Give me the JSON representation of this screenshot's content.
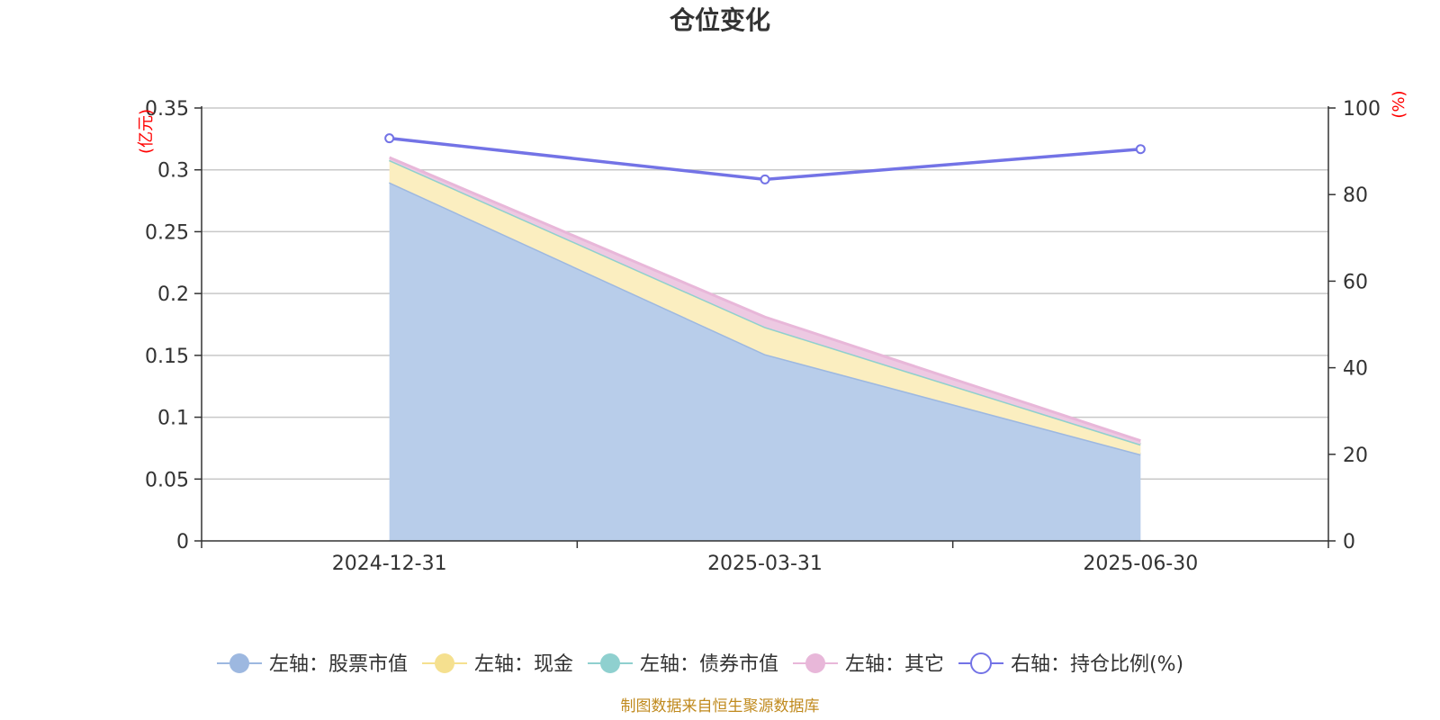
{
  "chart_data": {
    "type": "area",
    "title": "仓位变化",
    "categories": [
      "2024-12-31",
      "2025-03-31",
      "2025-06-30"
    ],
    "left_axis": {
      "unit": "(亿元)",
      "ylim": [
        0,
        0.35
      ],
      "ticks": [
        "0",
        "0.05",
        "0.1",
        "0.15",
        "0.2",
        "0.25",
        "0.3",
        "0.35"
      ]
    },
    "right_axis": {
      "unit": "(%)",
      "ylim": [
        0,
        100
      ],
      "ticks": [
        "0",
        "20",
        "40",
        "60",
        "80",
        "100"
      ]
    },
    "series": [
      {
        "name": "左轴：股票市值",
        "axis": "left",
        "stack": true,
        "values": [
          0.29,
          0.151,
          0.07
        ],
        "color": "#9db8e0",
        "fill": "#b8cdea"
      },
      {
        "name": "左轴：现金",
        "axis": "left",
        "stack": true,
        "values": [
          0.018,
          0.022,
          0.008
        ],
        "color": "#f5e08f",
        "fill": "#fbeec0"
      },
      {
        "name": "左轴：债券市值",
        "axis": "left",
        "stack": true,
        "values": [
          0,
          0,
          0
        ],
        "color": "#8fd0cf",
        "fill": "#bfe5e4"
      },
      {
        "name": "左轴：其它",
        "axis": "left",
        "stack": true,
        "values": [
          0.002,
          0.008,
          0.003
        ],
        "color": "#e8b7d9",
        "fill": "#edc9e2"
      },
      {
        "name": "右轴：持仓比例(%)",
        "axis": "right",
        "stack": false,
        "values": [
          93.0,
          83.5,
          90.5
        ],
        "color": "#7373e6"
      }
    ],
    "legend_position": "bottom",
    "grid": true
  },
  "footer": {
    "source": "制图数据来自恒生聚源数据库"
  }
}
